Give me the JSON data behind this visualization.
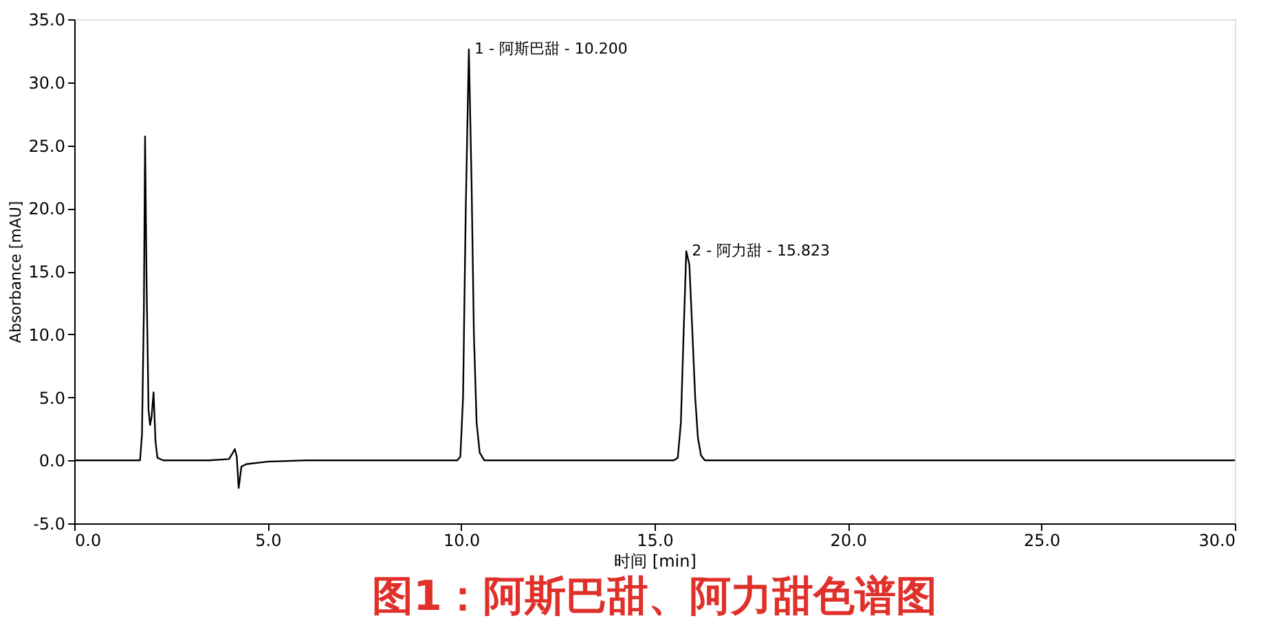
{
  "chart_data": {
    "type": "line",
    "title": "图1：阿斯巴甜、阿力甜色谱图",
    "xlabel": "时间 [min]",
    "ylabel": "Absorbance [mAU]",
    "series": [
      {
        "color": "#000000",
        "x": [
          0,
          1.0,
          1.7,
          1.75,
          1.8,
          1.83,
          1.87,
          1.92,
          1.96,
          2.0,
          2.05,
          2.1,
          2.15,
          2.3,
          3.5,
          4.0,
          4.1,
          4.15,
          4.2,
          4.25,
          4.32,
          4.45,
          5,
          6,
          8,
          9.9,
          9.98,
          10.05,
          10.12,
          10.2,
          10.27,
          10.33,
          10.4,
          10.48,
          10.6,
          11,
          13,
          15.5,
          15.6,
          15.68,
          15.75,
          15.82,
          15.9,
          15.98,
          16.05,
          16.12,
          16.2,
          16.3,
          16.5,
          20,
          25,
          30
        ],
        "values": [
          0,
          0,
          0,
          2,
          12,
          25.7,
          14,
          4,
          2.8,
          3.5,
          5.4,
          1.5,
          0.2,
          0,
          0,
          0.1,
          0.6,
          0.9,
          0.3,
          -2.2,
          -0.5,
          -0.3,
          -0.1,
          0,
          0,
          0,
          0.3,
          5,
          20,
          32.6,
          22,
          10,
          3,
          0.6,
          0,
          0,
          0,
          0,
          0.2,
          3,
          10,
          16.6,
          15.5,
          10,
          5,
          1.8,
          0.4,
          0,
          0,
          0,
          0,
          0
        ]
      }
    ],
    "annotations": [
      {
        "text": "1 - 阿斯巴甜 - 10.200",
        "x": 10.2,
        "y": 32.6
      },
      {
        "text": "2 - 阿力甜 - 15.823",
        "x": 15.82,
        "y": 16.6
      }
    ],
    "xlim": [
      0,
      30
    ],
    "ylim": [
      -5,
      35
    ],
    "xticks": [
      {
        "value": 0,
        "label": "0.0"
      },
      {
        "value": 5,
        "label": "5.0"
      },
      {
        "value": 10,
        "label": "10.0"
      },
      {
        "value": 15,
        "label": "15.0"
      },
      {
        "value": 20,
        "label": "20.0"
      },
      {
        "value": 25,
        "label": "25.0"
      },
      {
        "value": 30,
        "label": "30.0"
      }
    ],
    "yticks": [
      {
        "value": -5,
        "label": "-5.0"
      },
      {
        "value": 0,
        "label": "0.0"
      },
      {
        "value": 5,
        "label": "5.0"
      },
      {
        "value": 10,
        "label": "10.0"
      },
      {
        "value": 15,
        "label": "15.0"
      },
      {
        "value": 20,
        "label": "20.0"
      },
      {
        "value": 25,
        "label": "25.0"
      },
      {
        "value": 30,
        "label": "30.0"
      },
      {
        "value": 35,
        "label": "35.0"
      }
    ],
    "grid": false,
    "marker": "none",
    "line_style": "solid"
  }
}
